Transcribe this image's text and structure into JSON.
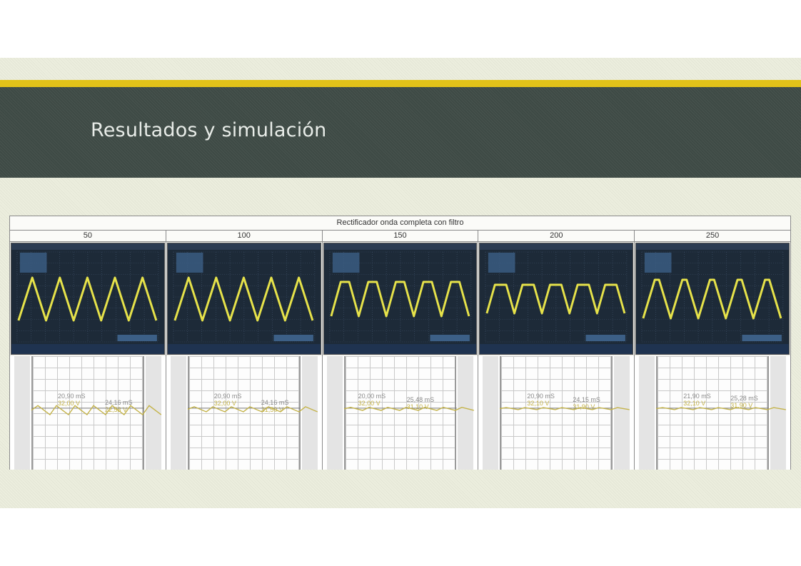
{
  "slide": {
    "title": "Resultados y simulación",
    "table_title": "Rectificador onda completa con filtro",
    "columns": [
      {
        "header": "50",
        "readouts": [
          {
            "time": "20,90 mS",
            "voltage": "32,00 V"
          },
          {
            "time": "24,16 mS",
            "voltage": "22,58 V"
          }
        ]
      },
      {
        "header": "100",
        "readouts": [
          {
            "time": "20,90 mS",
            "voltage": "32,00 V"
          },
          {
            "time": "24,16 mS",
            "voltage": "31,50 V"
          }
        ]
      },
      {
        "header": "150",
        "readouts": [
          {
            "time": "20,00 mS",
            "voltage": "32,00 V"
          },
          {
            "time": "25,48 mS",
            "voltage": "31,10 V"
          }
        ]
      },
      {
        "header": "200",
        "readouts": [
          {
            "time": "20,90 mS",
            "voltage": "32,10 V"
          },
          {
            "time": "24,15 mS",
            "voltage": "31,90 V"
          }
        ]
      },
      {
        "header": "250",
        "readouts": [
          {
            "time": "21,90 mS",
            "voltage": "32,10 V"
          },
          {
            "time": "25,28 mS",
            "voltage": "31,90 V"
          }
        ]
      }
    ],
    "colors": {
      "header_band": "#3e4a45",
      "accent_gold": "#e2c219",
      "scope_background": "#1d2a38",
      "trace_yellow": "#e6e24a"
    }
  }
}
